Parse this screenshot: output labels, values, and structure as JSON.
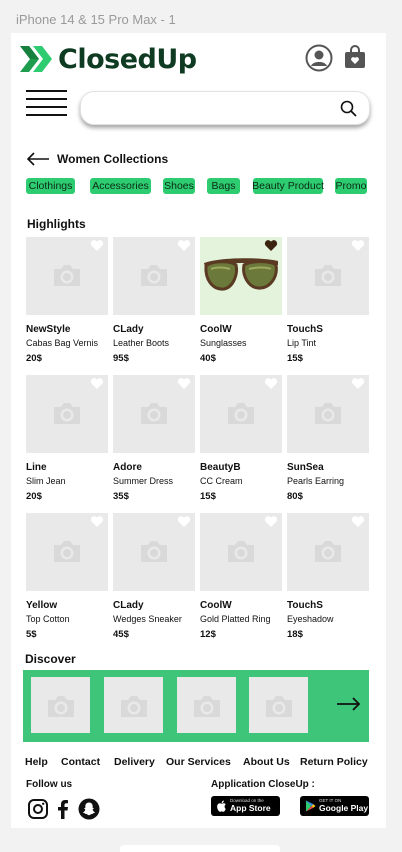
{
  "frame_label": "iPhone 14 & 15 Pro Max - 1",
  "colors": {
    "brand_green": "#2ecc71",
    "discover_green": "#3ec579",
    "logo_dark": "#0f3b22",
    "placeholder_gray": "#e9e9e9"
  },
  "header": {
    "logo_text": "ClosedUp",
    "user_icon": "user-icon",
    "bag_icon": "shopping-bag-icon"
  },
  "search": {
    "value": "",
    "placeholder": ""
  },
  "collection": {
    "title": "Women Collections"
  },
  "categories": [
    "Clothings",
    "Accessories",
    "Shoes",
    "Bags",
    "Beauty Product",
    "Promo"
  ],
  "highlights": {
    "title": "Highlights",
    "products": [
      {
        "brand": "NewStyle",
        "desc": "Cabas Bag Vernis",
        "price": "20$",
        "image": "camera-placeholder",
        "liked": false
      },
      {
        "brand": "CLady",
        "desc": "Leather Boots",
        "price": "95$",
        "image": "camera-placeholder",
        "liked": false
      },
      {
        "brand": "CoolW",
        "desc": "Sunglasses",
        "price": "40$",
        "image": "sunglasses",
        "liked": true
      },
      {
        "brand": "TouchS",
        "desc": "Lip Tint",
        "price": "15$",
        "image": "camera-placeholder",
        "liked": false
      },
      {
        "brand": "Line",
        "desc": "Slim Jean",
        "price": "20$",
        "image": "camera-placeholder",
        "liked": false
      },
      {
        "brand": "Adore",
        "desc": "Summer Dress",
        "price": "35$",
        "image": "camera-placeholder",
        "liked": false
      },
      {
        "brand": "BeautyB",
        "desc": "CC Cream",
        "price": "15$",
        "image": "camera-placeholder",
        "liked": false
      },
      {
        "brand": "SunSea",
        "desc": "Pearls Earring",
        "price": "80$",
        "image": "camera-placeholder",
        "liked": false
      },
      {
        "brand": "Yellow",
        "desc": "Top Cotton",
        "price": "5$",
        "image": "camera-placeholder",
        "liked": false
      },
      {
        "brand": "CLady",
        "desc": "Wedges Sneaker",
        "price": "45$",
        "image": "camera-placeholder",
        "liked": false
      },
      {
        "brand": "CoolW",
        "desc": "Gold Platted Ring",
        "price": "12$",
        "image": "camera-placeholder",
        "liked": false
      },
      {
        "brand": "TouchS",
        "desc": "Eyeshadow",
        "price": "18$",
        "image": "camera-placeholder",
        "liked": false
      }
    ]
  },
  "discover": {
    "title": "Discover",
    "thumb_count": 4,
    "next_icon": "arrow-right-icon"
  },
  "footer": {
    "links": [
      "Help",
      "Contact",
      "Delivery",
      "Our Services",
      "About Us",
      "Return Policy"
    ],
    "follow_label": "Follow us",
    "app_label": "Application CloseUp :",
    "social_icons": [
      "instagram-icon",
      "facebook-icon",
      "snapchat-icon"
    ],
    "app_store": {
      "small": "Download on the",
      "big": "App Store"
    },
    "google_play": {
      "small": "GET IT ON",
      "big": "Google Play"
    }
  }
}
